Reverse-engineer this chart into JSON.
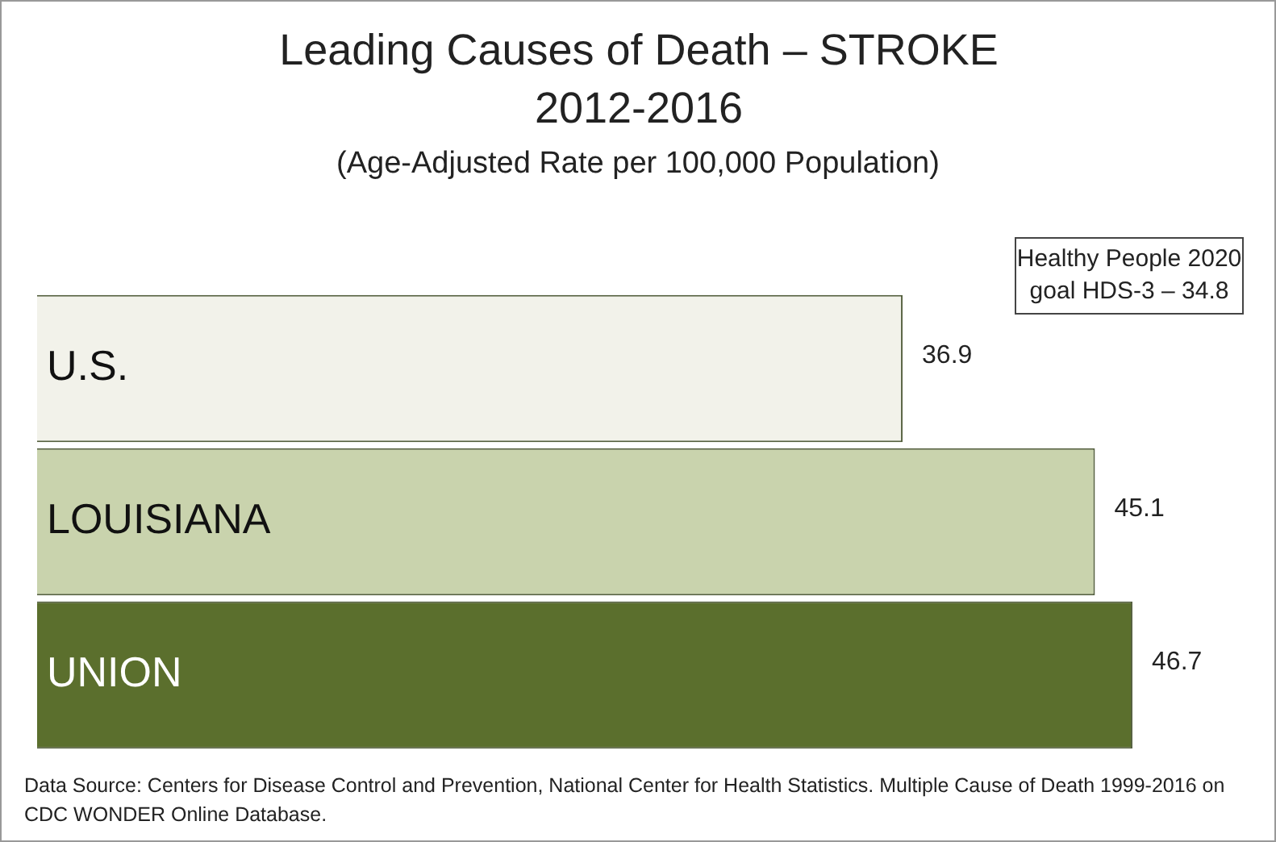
{
  "chart_data": {
    "type": "bar",
    "orientation": "horizontal",
    "title": "Leading Causes of Death – STROKE 2012-2016",
    "subtitle": "(Age-Adjusted Rate per 100,000 Population)",
    "categories": [
      "U.S.",
      "LOUISIANA",
      "UNION"
    ],
    "values": [
      36.9,
      45.1,
      46.7
    ],
    "colors": [
      "#f2f2ea",
      "#c9d3ad",
      "#5b6f2d"
    ],
    "data_labels": true,
    "annotations": [
      "Healthy People 2020 goal HDS-3 – 34.8",
      "Data Source: Centers for Disease Control and Prevention, National Center for Health Statistics.  Multiple Cause of Death 1999-2016 on CDC WONDER Online Database."
    ]
  }
}
